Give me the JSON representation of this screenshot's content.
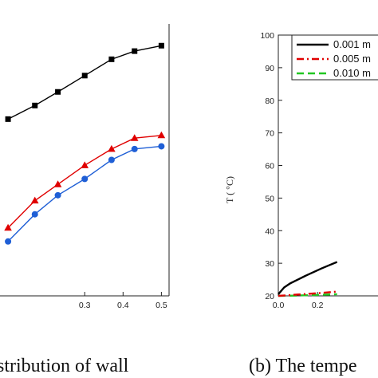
{
  "chart_data": [
    {
      "type": "line",
      "title": "",
      "xlabel": "",
      "ylabel": "",
      "caption": "stribution of wall",
      "x": [
        0.1,
        0.17,
        0.23,
        0.3,
        0.37,
        0.43,
        0.5
      ],
      "xticks": [
        "0.3",
        "0.4",
        "0.5"
      ],
      "xtick_values": [
        0.3,
        0.4,
        0.5
      ],
      "xlim": [
        0.0,
        0.52
      ],
      "ylim": [
        0,
        10
      ],
      "series": [
        {
          "color": "#000000",
          "marker": "square",
          "values": [
            6.5,
            7.0,
            7.5,
            8.1,
            8.7,
            9.0,
            9.2
          ]
        },
        {
          "color": "#e00000",
          "marker": "triangle",
          "values": [
            2.5,
            3.5,
            4.1,
            4.8,
            5.4,
            5.8,
            5.9
          ]
        },
        {
          "color": "#1f5fd6",
          "marker": "circle",
          "values": [
            2.0,
            3.0,
            3.7,
            4.3,
            5.0,
            5.4,
            5.5
          ]
        }
      ]
    },
    {
      "type": "line",
      "title": "",
      "xlabel": "",
      "ylabel": "T ( °C)",
      "caption": "(b) The tempe",
      "xlim": [
        0.0,
        0.57
      ],
      "ylim": [
        20,
        100
      ],
      "xticks": [
        "0.0",
        "0.2"
      ],
      "xtick_values": [
        0.0,
        0.2
      ],
      "yticks": [
        "20",
        "30",
        "40",
        "50",
        "60",
        "70",
        "80",
        "90",
        "100"
      ],
      "ytick_values": [
        20,
        30,
        40,
        50,
        60,
        70,
        80,
        90,
        100
      ],
      "legend_position": "top-right",
      "series": [
        {
          "name": "0.001 m",
          "color": "#000000",
          "dash": "solid",
          "x": [
            0.0,
            0.03,
            0.06,
            0.1,
            0.14,
            0.18,
            0.22,
            0.26,
            0.3
          ],
          "values": [
            20.5,
            22.6,
            23.8,
            25.0,
            26.2,
            27.3,
            28.4,
            29.4,
            30.4
          ]
        },
        {
          "name": "0.005 m",
          "color": "#e00000",
          "dash": "dashdot",
          "x": [
            0.0,
            0.1,
            0.2,
            0.3
          ],
          "values": [
            20.0,
            20.4,
            20.8,
            21.3
          ]
        },
        {
          "name": "0.010 m",
          "color": "#22c722",
          "dash": "dashed",
          "x": [
            0.0,
            0.1,
            0.2,
            0.3
          ],
          "values": [
            20.0,
            20.1,
            20.3,
            20.5
          ]
        }
      ]
    }
  ]
}
